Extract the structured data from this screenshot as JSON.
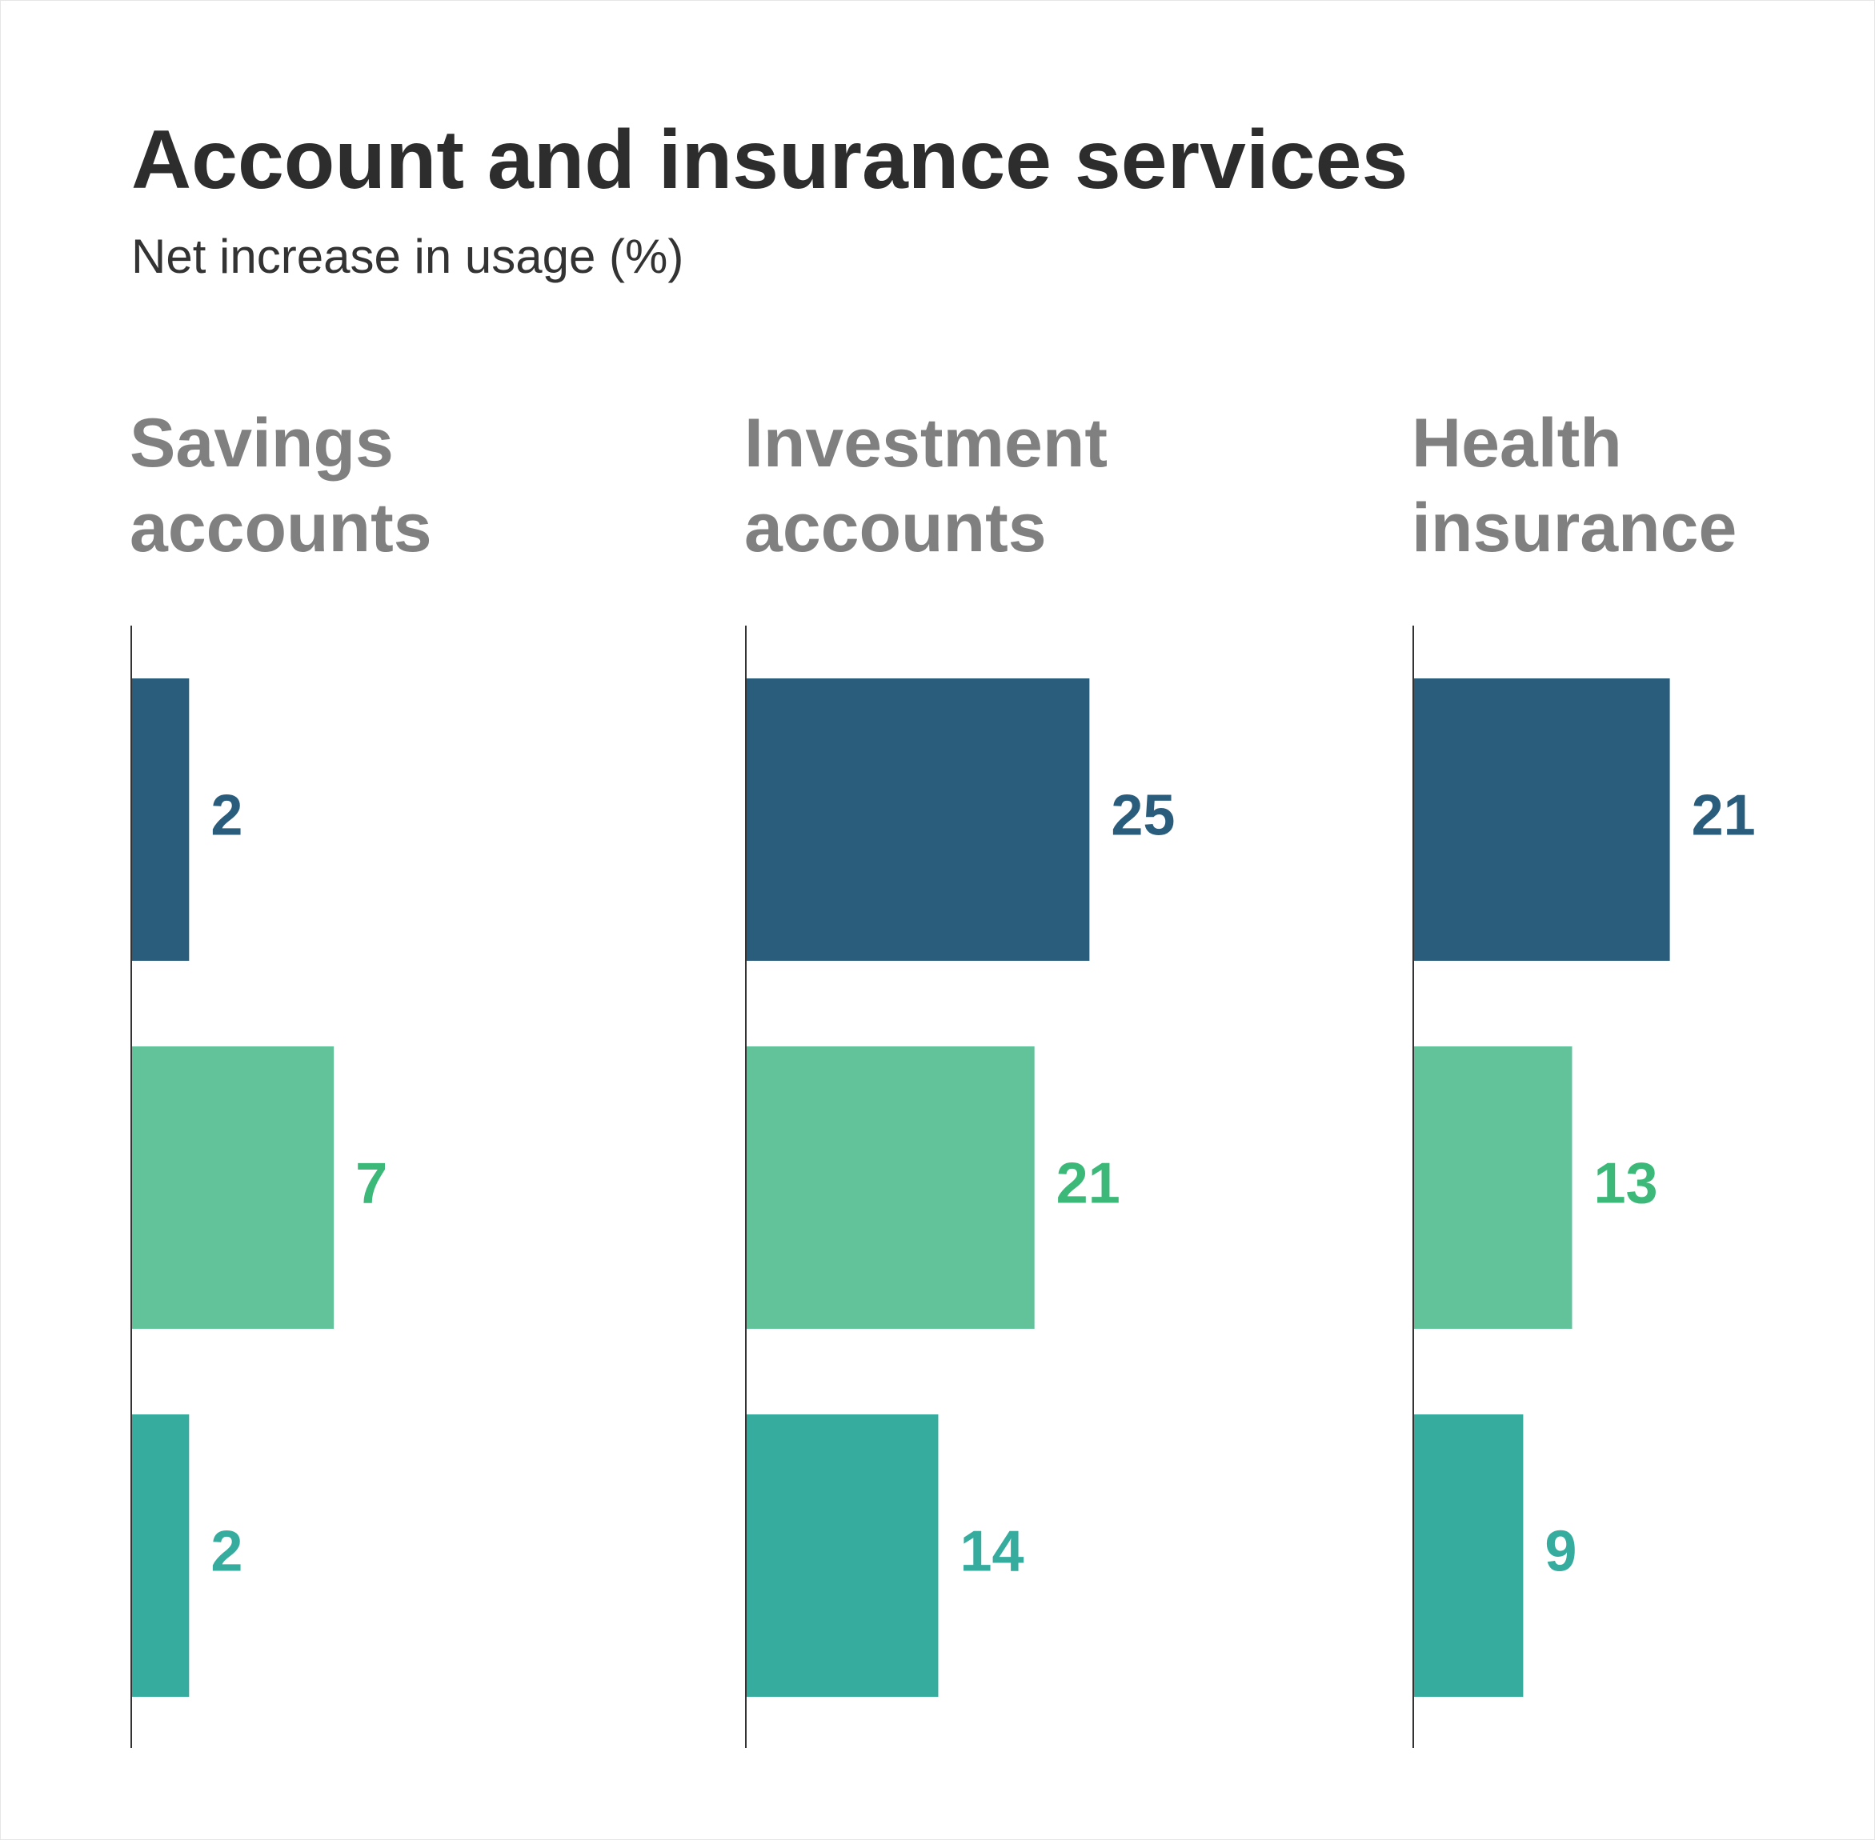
{
  "title": "Account and insurance services",
  "subtitle": "Net increase in usage (%)",
  "chart_data": [
    {
      "type": "bar",
      "orientation": "horizontal",
      "title": "Savings accounts",
      "values": [
        2,
        7,
        2
      ],
      "xlim": [
        0,
        19
      ],
      "colors": [
        "#2a5d7c",
        "#62c39a",
        "#36ac9f"
      ],
      "label_colors": [
        "#2a5d7c",
        "#3cb878",
        "#36ac9f"
      ]
    },
    {
      "type": "bar",
      "orientation": "horizontal",
      "title": "Investment accounts",
      "values": [
        25,
        21,
        14
      ],
      "xlim": [
        0,
        40
      ],
      "colors": [
        "#2a5d7c",
        "#62c39a",
        "#36ac9f"
      ],
      "label_colors": [
        "#2a5d7c",
        "#3cb878",
        "#36ac9f"
      ]
    },
    {
      "type": "bar",
      "orientation": "horizontal",
      "title": "Health insurance",
      "values": [
        21,
        13,
        9
      ],
      "xlim": [
        0,
        45
      ],
      "colors": [
        "#2a5d7c",
        "#62c39a",
        "#36ac9f"
      ],
      "label_colors": [
        "#2a5d7c",
        "#3cb878",
        "#36ac9f"
      ]
    }
  ]
}
